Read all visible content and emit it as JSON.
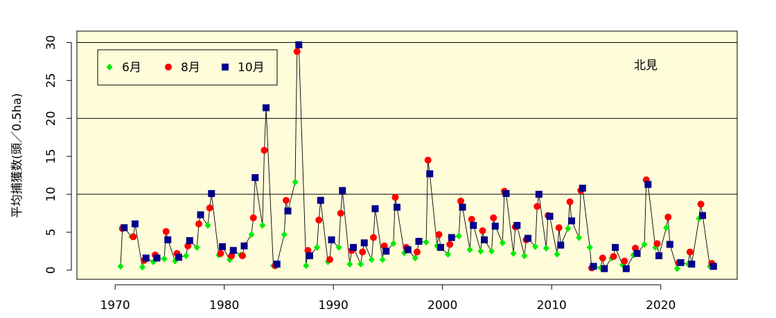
{
  "chart_data": {
    "type": "line",
    "ylabel": "平均捕獲数(頭／0.5ha)",
    "location_label": "北見",
    "xlim": [
      1966.5,
      2027.0
    ],
    "ylim": [
      -1.2,
      31.5
    ],
    "x_ticks": [
      1970,
      1980,
      1990,
      2000,
      2010,
      2020
    ],
    "y_ticks": [
      0,
      5,
      10,
      15,
      20,
      25,
      30
    ],
    "gridlines_y": [
      10,
      20,
      30
    ],
    "plot_background": "#fffcd9",
    "legend": {
      "position": "top-left"
    },
    "series": [
      {
        "name": "6月",
        "marker": "diamond",
        "color": "#00ee00",
        "points": [
          [
            1970.5,
            0.5
          ],
          [
            1971.5,
            4.4
          ],
          [
            1972.5,
            0.4
          ],
          [
            1973.5,
            1.1
          ],
          [
            1974.5,
            1.5
          ],
          [
            1975.5,
            1.2
          ],
          [
            1976.5,
            1.9
          ],
          [
            1977.5,
            3.0
          ],
          [
            1978.5,
            5.9
          ],
          [
            1979.5,
            2.0
          ],
          [
            1980.5,
            1.4
          ],
          [
            1981.5,
            2.0
          ],
          [
            1982.5,
            4.7
          ],
          [
            1983.5,
            5.9
          ],
          [
            1984.5,
            0.6
          ],
          [
            1985.5,
            4.7
          ],
          [
            1986.5,
            11.6
          ],
          [
            1987.5,
            0.6
          ],
          [
            1988.5,
            3.0
          ],
          [
            1989.5,
            1.1
          ],
          [
            1990.5,
            3.0
          ],
          [
            1991.5,
            0.8
          ],
          [
            1992.5,
            0.8
          ],
          [
            1993.5,
            1.4
          ],
          [
            1994.5,
            1.4
          ],
          [
            1995.5,
            3.5
          ],
          [
            1996.5,
            2.3
          ],
          [
            1997.5,
            1.6
          ],
          [
            1998.5,
            3.7
          ],
          [
            1999.5,
            3.2
          ],
          [
            2000.5,
            2.1
          ],
          [
            2001.5,
            4.5
          ],
          [
            2002.5,
            2.7
          ],
          [
            2003.5,
            2.5
          ],
          [
            2004.5,
            2.5
          ],
          [
            2005.5,
            3.6
          ],
          [
            2006.5,
            2.2
          ],
          [
            2007.5,
            1.9
          ],
          [
            2008.5,
            3.1
          ],
          [
            2009.5,
            2.9
          ],
          [
            2010.5,
            2.1
          ],
          [
            2011.5,
            5.5
          ],
          [
            2012.5,
            4.3
          ],
          [
            2013.5,
            3.0
          ],
          [
            2014.5,
            0.3
          ],
          [
            2015.5,
            1.6
          ],
          [
            2016.5,
            0.7
          ],
          [
            2017.5,
            2.0
          ],
          [
            2018.5,
            3.4
          ],
          [
            2019.5,
            3.0
          ],
          [
            2020.5,
            5.6
          ],
          [
            2021.5,
            0.2
          ],
          [
            2022.5,
            0.8
          ],
          [
            2023.5,
            6.8
          ],
          [
            2024.5,
            0.5
          ]
        ]
      },
      {
        "name": "8月",
        "marker": "circle",
        "color": "#ff0000",
        "points": [
          [
            1970.67,
            5.5
          ],
          [
            1971.67,
            4.4
          ],
          [
            1972.67,
            1.3
          ],
          [
            1973.67,
            2.0
          ],
          [
            1974.67,
            5.1
          ],
          [
            1975.67,
            2.2
          ],
          [
            1976.67,
            3.2
          ],
          [
            1977.67,
            6.1
          ],
          [
            1978.67,
            8.2
          ],
          [
            1979.67,
            2.2
          ],
          [
            1980.67,
            1.9
          ],
          [
            1981.67,
            1.9
          ],
          [
            1982.67,
            6.9
          ],
          [
            1983.67,
            15.8
          ],
          [
            1984.67,
            0.6
          ],
          [
            1985.67,
            9.2
          ],
          [
            1986.67,
            28.8
          ],
          [
            1987.67,
            2.6
          ],
          [
            1988.67,
            6.6
          ],
          [
            1989.67,
            1.4
          ],
          [
            1990.67,
            7.5
          ],
          [
            1991.67,
            2.6
          ],
          [
            1992.67,
            2.4
          ],
          [
            1993.67,
            4.3
          ],
          [
            1994.67,
            3.2
          ],
          [
            1995.67,
            9.6
          ],
          [
            1996.67,
            3.0
          ],
          [
            1997.67,
            2.4
          ],
          [
            1998.67,
            14.5
          ],
          [
            1999.67,
            4.7
          ],
          [
            2000.67,
            3.4
          ],
          [
            2001.67,
            9.1
          ],
          [
            2002.67,
            6.7
          ],
          [
            2003.67,
            5.2
          ],
          [
            2004.67,
            6.9
          ],
          [
            2005.67,
            10.4
          ],
          [
            2006.67,
            5.7
          ],
          [
            2007.67,
            4.0
          ],
          [
            2008.67,
            8.4
          ],
          [
            2009.67,
            7.2
          ],
          [
            2010.67,
            5.6
          ],
          [
            2011.67,
            9.0
          ],
          [
            2012.67,
            10.5
          ],
          [
            2013.67,
            0.3
          ],
          [
            2014.67,
            1.6
          ],
          [
            2015.67,
            1.8
          ],
          [
            2016.67,
            1.2
          ],
          [
            2017.67,
            2.9
          ],
          [
            2018.67,
            11.9
          ],
          [
            2019.67,
            3.5
          ],
          [
            2020.67,
            7.0
          ],
          [
            2021.67,
            1.0
          ],
          [
            2022.67,
            2.4
          ],
          [
            2023.67,
            8.7
          ],
          [
            2024.67,
            0.9
          ]
        ]
      },
      {
        "name": "10月",
        "marker": "square",
        "color": "#00008b",
        "points": [
          [
            1970.83,
            5.6
          ],
          [
            1971.83,
            6.1
          ],
          [
            1972.83,
            1.6
          ],
          [
            1973.83,
            1.6
          ],
          [
            1974.83,
            4.0
          ],
          [
            1975.83,
            1.7
          ],
          [
            1976.83,
            3.9
          ],
          [
            1977.83,
            7.3
          ],
          [
            1978.83,
            10.1
          ],
          [
            1979.83,
            3.1
          ],
          [
            1980.83,
            2.6
          ],
          [
            1981.83,
            3.2
          ],
          [
            1982.83,
            12.2
          ],
          [
            1983.83,
            21.4
          ],
          [
            1984.83,
            0.8
          ],
          [
            1985.83,
            7.8
          ],
          [
            1986.83,
            29.7
          ],
          [
            1987.83,
            1.9
          ],
          [
            1988.83,
            9.2
          ],
          [
            1989.83,
            4.0
          ],
          [
            1990.83,
            10.5
          ],
          [
            1991.83,
            3.0
          ],
          [
            1992.83,
            3.6
          ],
          [
            1993.83,
            8.1
          ],
          [
            1994.83,
            2.5
          ],
          [
            1995.83,
            8.3
          ],
          [
            1996.83,
            2.7
          ],
          [
            1997.83,
            3.8
          ],
          [
            1998.83,
            12.7
          ],
          [
            1999.83,
            3.0
          ],
          [
            2000.83,
            4.3
          ],
          [
            2001.83,
            8.3
          ],
          [
            2002.83,
            5.9
          ],
          [
            2003.83,
            4.0
          ],
          [
            2004.83,
            5.8
          ],
          [
            2005.83,
            10.1
          ],
          [
            2006.83,
            5.9
          ],
          [
            2007.83,
            4.2
          ],
          [
            2008.83,
            10.0
          ],
          [
            2009.83,
            7.1
          ],
          [
            2010.83,
            3.3
          ],
          [
            2011.83,
            6.5
          ],
          [
            2012.83,
            10.8
          ],
          [
            2013.83,
            0.5
          ],
          [
            2014.83,
            0.2
          ],
          [
            2015.83,
            3.0
          ],
          [
            2016.83,
            0.2
          ],
          [
            2017.83,
            2.2
          ],
          [
            2018.83,
            11.3
          ],
          [
            2019.83,
            1.9
          ],
          [
            2020.83,
            3.4
          ],
          [
            2021.83,
            1.0
          ],
          [
            2022.83,
            0.8
          ],
          [
            2023.83,
            7.2
          ],
          [
            2024.83,
            0.5
          ]
        ]
      }
    ]
  }
}
